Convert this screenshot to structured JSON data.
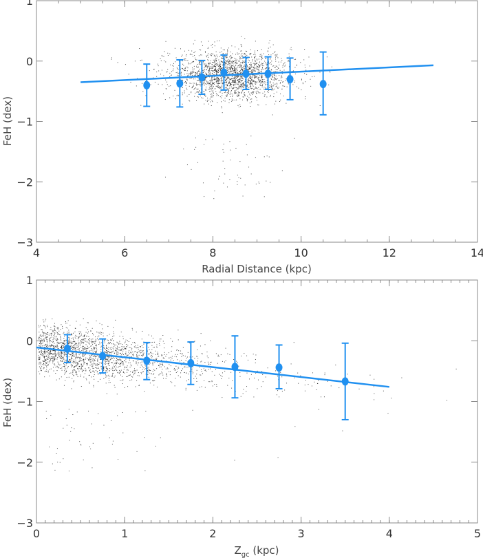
{
  "chart_data": [
    {
      "type": "scatter",
      "xlabel": "Radial Distance (kpc)",
      "ylabel": "FeH (dex)",
      "xlim": [
        4,
        14
      ],
      "ylim": [
        -3,
        1
      ],
      "xticks": [
        "4",
        "6",
        "8",
        "10",
        "12",
        "14"
      ],
      "yticks": [
        "1",
        "0",
        "-1",
        "-2",
        "-3"
      ],
      "grid": false,
      "color_points": "#000000",
      "color_binned": "#2090f0",
      "binned": {
        "x": [
          6.5,
          7.25,
          7.75,
          8.25,
          8.75,
          9.25,
          9.75,
          10.5
        ],
        "y": [
          -0.4,
          -0.37,
          -0.27,
          -0.19,
          -0.21,
          -0.21,
          -0.3,
          -0.38
        ],
        "err_low": [
          -0.75,
          -0.76,
          -0.55,
          -0.48,
          -0.47,
          -0.47,
          -0.64,
          -0.89
        ],
        "err_high": [
          -0.05,
          0.02,
          0.01,
          0.1,
          0.06,
          0.07,
          0.05,
          0.15
        ]
      },
      "fit_line": {
        "x": [
          5,
          13
        ],
        "y": [
          -0.35,
          -0.07
        ]
      }
    },
    {
      "type": "scatter",
      "xlabel": "Z",
      "xlabel_sub": "gc",
      "xlabel_unit": " (kpc)",
      "ylabel": "FeH (dex)",
      "xlim": [
        0,
        5
      ],
      "ylim": [
        -3,
        1
      ],
      "xticks": [
        "0",
        "1",
        "2",
        "3",
        "4",
        "5"
      ],
      "yticks": [
        "1",
        "0",
        "-1",
        "-2",
        "-3"
      ],
      "grid": false,
      "color_points": "#000000",
      "color_binned": "#2090f0",
      "binned": {
        "x": [
          0.35,
          0.75,
          1.25,
          1.75,
          2.25,
          2.75,
          3.5
        ],
        "y": [
          -0.13,
          -0.25,
          -0.33,
          -0.37,
          -0.43,
          -0.44,
          -0.67
        ],
        "err_low": [
          -0.36,
          -0.53,
          -0.64,
          -0.72,
          -0.94,
          -0.79,
          -1.3
        ],
        "err_high": [
          0.1,
          0.03,
          -0.03,
          -0.02,
          0.08,
          -0.07,
          -0.04
        ]
      },
      "fit_line": {
        "x": [
          0,
          4
        ],
        "y": [
          -0.11,
          -0.76
        ]
      }
    }
  ]
}
